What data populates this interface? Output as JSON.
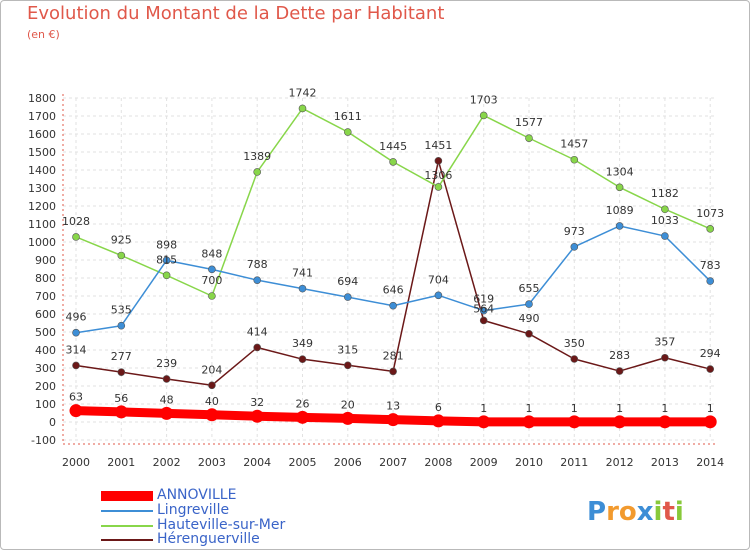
{
  "chart_data": {
    "type": "line",
    "title": "Evolution du Montant de la Dette par Habitant",
    "subtitle": "(en €)",
    "xlabel": "",
    "ylabel": "",
    "x": [
      "2000",
      "2001",
      "2002",
      "2003",
      "2004",
      "2005",
      "2006",
      "2007",
      "2008",
      "2009",
      "2010",
      "2011",
      "2012",
      "2013",
      "2014"
    ],
    "ylim": [
      -100,
      1800
    ],
    "yticks": [
      -100,
      0,
      100,
      200,
      300,
      400,
      500,
      600,
      700,
      800,
      900,
      1000,
      1100,
      1200,
      1300,
      1400,
      1500,
      1600,
      1700,
      1800
    ],
    "grid": true,
    "legend_position": "bottom-left",
    "series": [
      {
        "name": "ANNOVILLE",
        "color": "#ff0000",
        "values": [
          63,
          56,
          48,
          40,
          32,
          26,
          20,
          13,
          6,
          1,
          1,
          1,
          1,
          1,
          1
        ]
      },
      {
        "name": "Lingreville",
        "color": "#3d8ed6",
        "values": [
          496,
          535,
          898,
          848,
          788,
          741,
          694,
          646,
          704,
          619,
          655,
          973,
          1089,
          1033,
          783
        ]
      },
      {
        "name": "Hauteville-sur-Mer",
        "color": "#88d64a",
        "values": [
          1028,
          925,
          815,
          700,
          1389,
          1742,
          1611,
          1445,
          1306,
          1703,
          1577,
          1457,
          1304,
          1182,
          1073
        ]
      },
      {
        "name": "Hérenguerville",
        "color": "#6b1818",
        "values": [
          314,
          277,
          239,
          204,
          414,
          349,
          315,
          281,
          1451,
          564,
          490,
          350,
          283,
          357,
          294
        ]
      }
    ]
  },
  "logo_text": "Proxiti"
}
